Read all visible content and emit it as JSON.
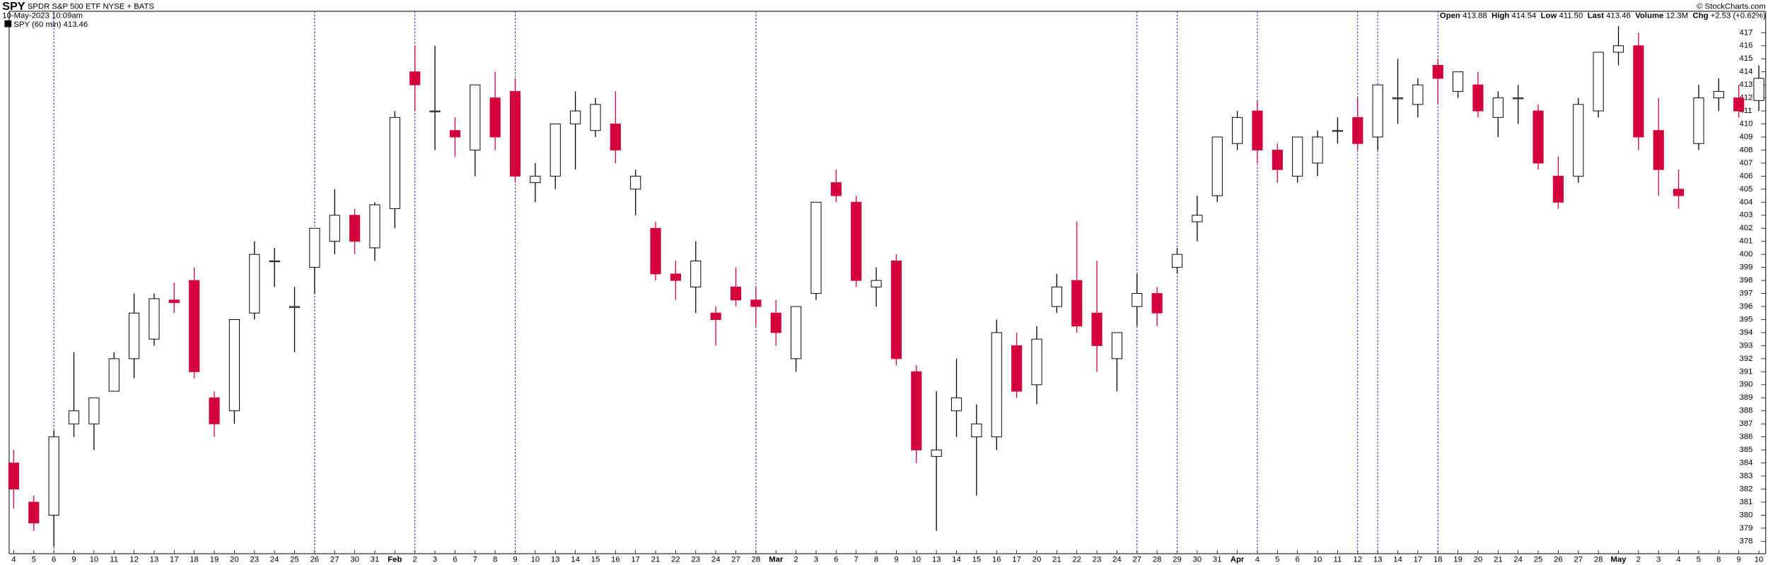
{
  "chart_data": {
    "type": "candlestick",
    "title": "SPY",
    "subtitle": "SPDR S&P 500 ETF NYSE + BATS",
    "timestamp": "10-May-2023 10:09am",
    "legend": "SPY (60 min) 413.46",
    "credit": "© StockCharts.com",
    "quote": [
      {
        "label": "Open",
        "value": "413.88"
      },
      {
        "label": "High",
        "value": "414.54"
      },
      {
        "label": "Low",
        "value": "411.50"
      },
      {
        "label": "Last",
        "value": "413.46"
      },
      {
        "label": "Volume",
        "value": "12.3M"
      },
      {
        "label": "Chg",
        "value": "+2.53 (+0.62%)"
      }
    ],
    "categories": [
      "4",
      "5",
      "6",
      "9",
      "10",
      "11",
      "12",
      "13",
      "17",
      "18",
      "19",
      "20",
      "23",
      "24",
      "25",
      "26",
      "27",
      "30",
      "31",
      "Feb",
      "2",
      "3",
      "6",
      "7",
      "8",
      "9",
      "10",
      "13",
      "14",
      "15",
      "16",
      "17",
      "21",
      "22",
      "23",
      "24",
      "27",
      "28",
      "Mar",
      "2",
      "3",
      "6",
      "7",
      "8",
      "9",
      "10",
      "13",
      "14",
      "15",
      "16",
      "17",
      "20",
      "21",
      "22",
      "23",
      "24",
      "27",
      "28",
      "29",
      "30",
      "31",
      "Apr",
      "4",
      "5",
      "6",
      "10",
      "11",
      "12",
      "13",
      "14",
      "17",
      "18",
      "19",
      "20",
      "21",
      "24",
      "25",
      "26",
      "27",
      "28",
      "May",
      "2",
      "3",
      "4",
      "5",
      "8",
      "9",
      "10"
    ],
    "bold_categories": [
      "Feb",
      "Mar",
      "Apr",
      "May"
    ],
    "open": [
      384,
      381,
      380,
      387,
      387,
      389.5,
      392,
      393.5,
      396.5,
      398,
      389,
      388,
      395.5,
      399.5,
      396,
      399,
      401,
      403,
      400.5,
      403.5,
      414,
      411,
      409.5,
      408,
      412,
      412.5,
      405.5,
      406,
      410,
      409.5,
      410,
      405,
      402,
      398.5,
      397.5,
      395.5,
      397.5,
      396.5,
      395.5,
      392,
      397,
      405.5,
      404,
      397.5,
      399.5,
      391,
      384.5,
      388,
      386,
      386,
      393,
      390,
      396,
      398,
      395.5,
      392,
      396,
      397,
      399,
      402.5,
      404.5,
      408.5,
      411,
      408,
      406,
      407,
      409.5,
      410.5,
      409,
      412,
      411.5,
      414.5,
      412.5,
      413,
      410.5,
      412,
      411,
      406,
      406,
      411,
      415.5,
      416,
      409.5,
      405,
      408.5,
      412,
      412,
      411.8
    ],
    "high": [
      385,
      381.5,
      386.5,
      392.5,
      389,
      392.5,
      397,
      397,
      397.8,
      399,
      389.5,
      395,
      401,
      400.5,
      397.5,
      402,
      405,
      403.5,
      404,
      411,
      416,
      416,
      410.5,
      413,
      414,
      413.5,
      407,
      410,
      412.5,
      412,
      412.5,
      406.5,
      402.5,
      399.5,
      401,
      396,
      399,
      397.5,
      396.5,
      396,
      404,
      406.5,
      404.5,
      399,
      400,
      391.5,
      389.5,
      392,
      388.5,
      395,
      394,
      394.5,
      398.5,
      402.5,
      399.5,
      394,
      398.5,
      397.5,
      400.5,
      404.5,
      409,
      411,
      411.8,
      408.5,
      409,
      409.5,
      410.5,
      412,
      413,
      415,
      413.5,
      415,
      414,
      414,
      412.5,
      413,
      411.5,
      407.5,
      412,
      415.5,
      417.5,
      417,
      412,
      406.5,
      413,
      413.5,
      413,
      414.5
    ],
    "low": [
      380.5,
      378.8,
      377.6,
      386,
      385,
      389.5,
      390.5,
      393,
      395.5,
      390.5,
      386,
      387,
      395,
      397.5,
      392.5,
      397,
      400,
      400,
      399.5,
      402,
      411,
      408,
      407.5,
      406,
      408,
      405.5,
      404,
      405,
      406.5,
      409,
      407,
      403,
      398,
      396.5,
      395.5,
      393,
      396,
      394.5,
      393,
      391,
      396.5,
      404,
      397.5,
      396,
      391.5,
      384,
      378.8,
      386,
      381.5,
      385,
      389,
      388.5,
      395.5,
      394,
      391,
      389.5,
      394.5,
      394.5,
      398.5,
      401,
      404,
      408,
      407,
      405.5,
      405.5,
      406,
      408.5,
      408,
      408,
      410,
      410.5,
      411.5,
      412,
      410.5,
      409,
      410,
      406.5,
      403.5,
      405.5,
      410.5,
      414.5,
      408,
      404.5,
      403.5,
      408,
      411,
      410.5,
      411
    ],
    "close": [
      382,
      379.4,
      386,
      388,
      389,
      392,
      395.5,
      396.6,
      396.3,
      391,
      387,
      395,
      400,
      399.5,
      396,
      402,
      403,
      401,
      403.8,
      410.5,
      413,
      411,
      409,
      413,
      409,
      406,
      406,
      410,
      411,
      411.5,
      408,
      406,
      398.5,
      398,
      399.5,
      395,
      396.5,
      396,
      394,
      396,
      404,
      404.5,
      398,
      398,
      392,
      385,
      385,
      389,
      387,
      394,
      389.5,
      393.5,
      397.5,
      394.5,
      393,
      394,
      397,
      395.5,
      400,
      403,
      409,
      410.5,
      408,
      406.5,
      409,
      409,
      409.5,
      408.5,
      413,
      412,
      413,
      413.5,
      414,
      411,
      412,
      412,
      407,
      404,
      411.5,
      415.5,
      416,
      409,
      406.5,
      404.5,
      412,
      412.5,
      411,
      413.5
    ],
    "up_color": "#000000",
    "down_color": "#d4003c",
    "ylim": [
      377,
      418
    ],
    "yticks": [
      378,
      379,
      380,
      381,
      382,
      383,
      384,
      385,
      386,
      387,
      388,
      389,
      390,
      391,
      392,
      393,
      394,
      395,
      396,
      397,
      398,
      399,
      400,
      401,
      402,
      403,
      404,
      405,
      406,
      407,
      408,
      409,
      410,
      411,
      412,
      413,
      414,
      415,
      416,
      417
    ],
    "vlines": [
      2,
      15,
      20,
      25,
      37,
      56,
      58,
      62,
      67,
      68,
      71
    ],
    "vline_color": "#2a2ae0"
  }
}
